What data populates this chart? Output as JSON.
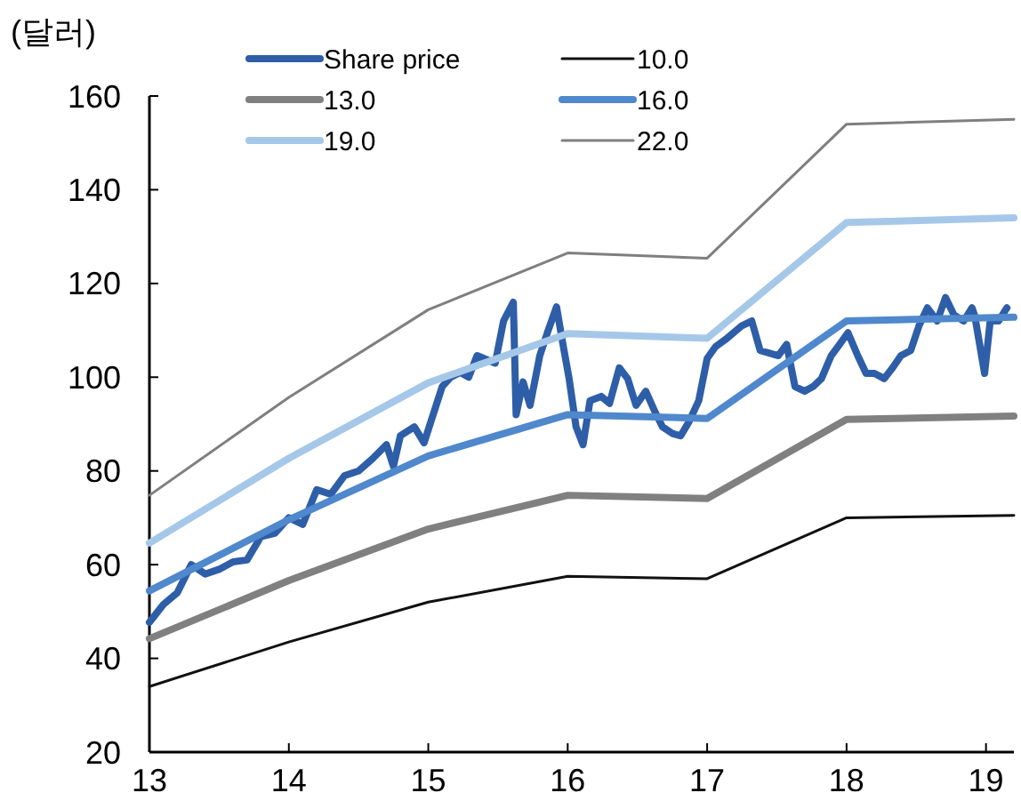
{
  "chart_data": {
    "type": "line",
    "ylabel": "(달러)",
    "xlim": [
      13,
      19.2
    ],
    "xticks": [
      13,
      14,
      15,
      16,
      17,
      18,
      19
    ],
    "ylim": [
      20,
      160
    ],
    "yticks": [
      20,
      40,
      60,
      80,
      100,
      120,
      140,
      160
    ],
    "grid": false,
    "legend": "top",
    "marker": "none",
    "line_style": "solid",
    "series": [
      {
        "name": "Share price",
        "color": "#2e5ea8",
        "x": [
          13.0,
          13.1,
          13.2,
          13.3,
          13.4,
          13.5,
          13.6,
          13.7,
          13.8,
          13.9,
          14.0,
          14.1,
          14.2,
          14.3,
          14.4,
          14.5,
          14.6,
          14.7,
          14.75,
          14.8,
          14.9,
          14.97,
          15.1,
          15.16,
          15.23,
          15.29,
          15.35,
          15.48,
          15.54,
          15.61,
          15.63,
          15.68,
          15.73,
          15.8,
          15.86,
          15.92,
          15.96,
          16.01,
          16.06,
          16.11,
          16.16,
          16.24,
          16.3,
          16.37,
          16.43,
          16.49,
          16.56,
          16.62,
          16.68,
          16.75,
          16.81,
          16.87,
          16.94,
          17.0,
          17.06,
          17.13,
          17.25,
          17.32,
          17.38,
          17.51,
          17.57,
          17.63,
          17.7,
          17.76,
          17.82,
          17.89,
          17.95,
          18.01,
          18.08,
          18.14,
          18.2,
          18.27,
          18.33,
          18.39,
          18.46,
          18.52,
          18.58,
          18.65,
          18.71,
          18.77,
          18.84,
          18.9,
          18.92,
          18.99,
          19.03,
          19.09,
          19.15
        ],
        "values": [
          47.7,
          51.5,
          54,
          60,
          58,
          59,
          60.6,
          61,
          66,
          66.7,
          70,
          68.6,
          76,
          75,
          79,
          80,
          82.6,
          85.6,
          81,
          87.5,
          89.4,
          86,
          98,
          100,
          101,
          100,
          104.6,
          103,
          112,
          116,
          92,
          99,
          94,
          104.6,
          110,
          115,
          108,
          99.7,
          89.4,
          85.6,
          95,
          95.9,
          94.4,
          102,
          99.7,
          94,
          97,
          93,
          89.4,
          88,
          87.5,
          90.5,
          95,
          104,
          106.5,
          108,
          111,
          112,
          105.7,
          104.6,
          107,
          98,
          97,
          98,
          99.7,
          104.6,
          107,
          109.5,
          104.6,
          100.8,
          100.8,
          99.7,
          102,
          104.6,
          105.7,
          111,
          114.8,
          112,
          117,
          113.3,
          112,
          114.8,
          113,
          100.8,
          112,
          112,
          114.8
        ]
      },
      {
        "name": "10.0",
        "color": "#111111",
        "x": [
          13,
          14,
          15,
          16,
          17,
          18,
          19.2
        ],
        "values": [
          34,
          43.5,
          52,
          57.5,
          57,
          70,
          70.5
        ]
      },
      {
        "name": "13.0",
        "color": "#808080",
        "x": [
          13,
          14,
          15,
          16,
          17,
          18,
          19.2
        ],
        "values": [
          44.2,
          56.6,
          67.6,
          74.8,
          74.1,
          91,
          91.7
        ]
      },
      {
        "name": "16.0",
        "color": "#4f88cc",
        "x": [
          13,
          14,
          15,
          16,
          17,
          18,
          19.2
        ],
        "values": [
          54.4,
          69.6,
          83.2,
          92,
          91.2,
          112,
          112.8
        ]
      },
      {
        "name": "19.0",
        "color": "#a6c8e8",
        "x": [
          13,
          14,
          15,
          16,
          17,
          18,
          19.2
        ],
        "values": [
          64.6,
          82.7,
          98.8,
          109.3,
          108.3,
          133,
          134
        ]
      },
      {
        "name": "22.0",
        "color": "#7f7f7f",
        "x": [
          13,
          14,
          15,
          16,
          17,
          18,
          19.2
        ],
        "values": [
          74.8,
          95.7,
          114.4,
          126.5,
          125.4,
          154,
          155
        ]
      }
    ]
  }
}
